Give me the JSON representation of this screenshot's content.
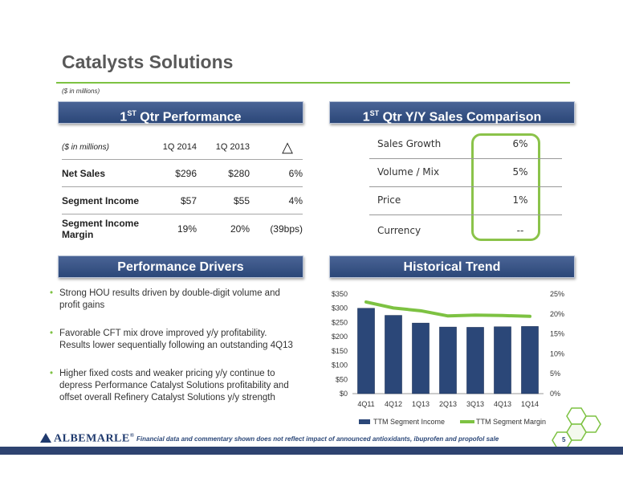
{
  "title": "Catalysts Solutions",
  "subnote": "($ in millions)",
  "banners": {
    "performance": "Qtr Performance",
    "sales_comparison": "Qtr Y/Y Sales Comparison",
    "drivers": "Performance Drivers",
    "trend": "Historical Trend",
    "prefix": "1",
    "sup": "ST"
  },
  "perf_table": {
    "header": [
      "($ in millions)",
      "1Q 2014",
      "1Q 2013",
      "△"
    ],
    "rows": [
      {
        "label": "Net Sales",
        "q2014": "$296",
        "q2013": "$280",
        "delta": "6%"
      },
      {
        "label": "Segment Income",
        "q2014": "$57",
        "q2013": "$55",
        "delta": "4%"
      },
      {
        "label": "Segment Income Margin",
        "q2014": "19%",
        "q2013": "20%",
        "delta": "(39bps)"
      }
    ]
  },
  "yy_table": [
    {
      "name": "Sales Growth",
      "value": "6%"
    },
    {
      "name": "Volume / Mix",
      "value": "5%"
    },
    {
      "name": "Price",
      "value": "1%"
    },
    {
      "name": "Currency",
      "value": "--"
    }
  ],
  "drivers": [
    "Strong HOU results driven by double-digit volume and profit gains",
    "Favorable CFT mix drove improved y/y profitability. Results lower sequentially following an outstanding 4Q13",
    "Higher fixed costs and weaker pricing y/y continue to depress Performance Catalyst Solutions profitability and offset overall Refinery Catalyst Solutions y/y strength"
  ],
  "footer": {
    "logo": "ALBEMARLE",
    "reg": "®",
    "note": "Financial data and commentary shown does not reflect impact of announced antioxidants, ibuprofen and propofol sale",
    "page": "5"
  },
  "colors": {
    "bar": "#2b4778",
    "line": "#7dc242",
    "banner": "#2b4778",
    "accent": "#7dc242"
  },
  "chart_data": {
    "type": "bar",
    "categories": [
      "4Q11",
      "4Q12",
      "1Q13",
      "2Q13",
      "3Q13",
      "4Q13",
      "1Q14"
    ],
    "series": [
      {
        "name": "TTM Segment Income",
        "type": "bar",
        "axis": "left",
        "values": [
          300,
          275,
          248,
          234,
          233,
          235,
          236
        ]
      },
      {
        "name": "TTM Segment Margin",
        "type": "line",
        "axis": "right",
        "values": [
          23.0,
          21.5,
          20.8,
          19.5,
          19.7,
          19.6,
          19.4
        ]
      }
    ],
    "y_left": {
      "min": 0,
      "max": 350,
      "step": 50,
      "ticks": [
        "$0",
        "$50",
        "$100",
        "$150",
        "$200",
        "$250",
        "$300",
        "$350"
      ]
    },
    "y_right": {
      "min": 0,
      "max": 25,
      "step": 5,
      "ticks": [
        "0%",
        "5%",
        "10%",
        "15%",
        "20%",
        "25%"
      ]
    }
  }
}
